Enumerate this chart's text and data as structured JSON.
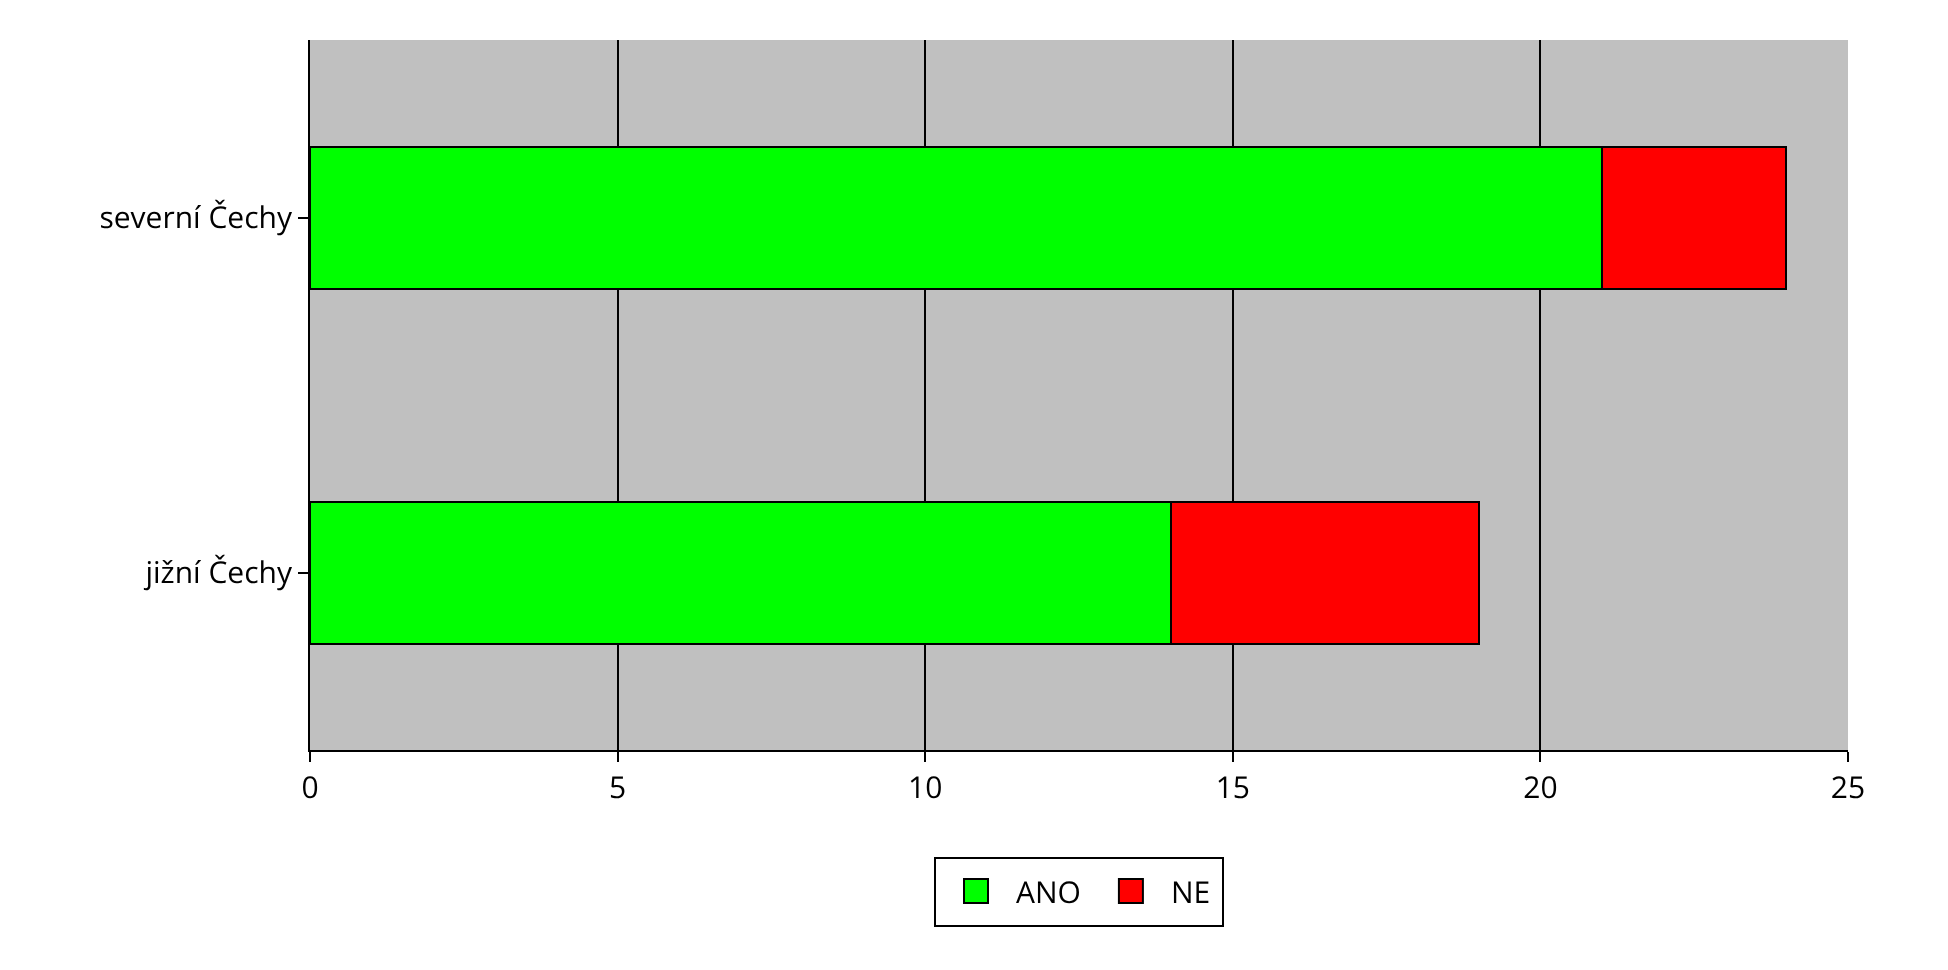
{
  "chart_data": {
    "type": "bar",
    "orientation": "horizontal",
    "stacked": true,
    "categories": [
      "severní Čechy",
      "jižní Čechy"
    ],
    "series": [
      {
        "name": "ANO",
        "color": "#00ff00",
        "values": [
          21,
          14
        ]
      },
      {
        "name": "NE",
        "color": "#ff0000",
        "values": [
          3,
          5
        ]
      }
    ],
    "xlim": [
      0,
      25
    ],
    "xticks": [
      0,
      5,
      10,
      15,
      20,
      25
    ],
    "grid": "x",
    "legend": "bottom"
  }
}
